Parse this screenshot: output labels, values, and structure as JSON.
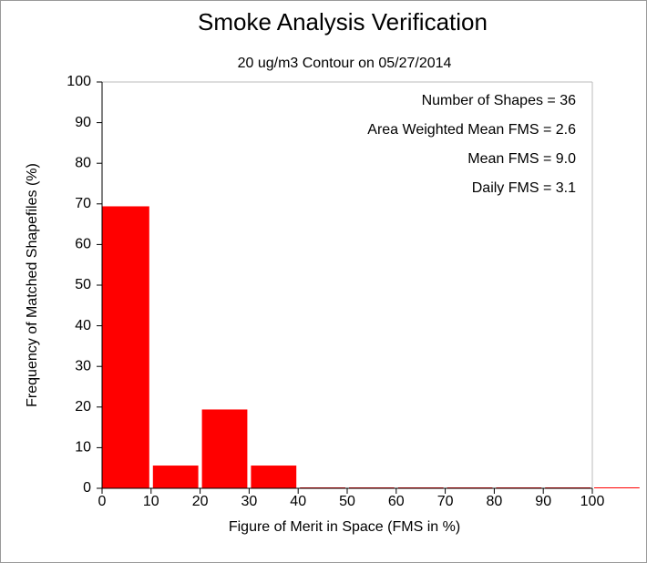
{
  "chart_data": {
    "type": "histogram",
    "title": "Smoke Analysis Verification",
    "subtitle": "20 ug/m3 Contour on 05/27/2014",
    "x_label": "Figure of Merit in Space (FMS in %)",
    "y_label": "Frequency of Matched Shapefiles (%)",
    "annotations": [
      "Number of Shapes = 36",
      "Area Weighted Mean FMS = 2.6",
      "Mean FMS = 9.0",
      "Daily FMS = 3.1"
    ],
    "bins": [
      0,
      10,
      20,
      30,
      40,
      50,
      60,
      70,
      80,
      90,
      100,
      110
    ],
    "values": [
      69.4,
      5.6,
      19.4,
      5.6,
      0,
      0,
      0,
      0,
      0,
      0,
      0
    ],
    "color": "#ff0000",
    "xlim": [
      0,
      100
    ],
    "xticks": [
      0,
      10,
      20,
      30,
      40,
      50,
      60,
      70,
      80,
      90,
      100
    ],
    "ylim": [
      0,
      100
    ],
    "yticks": [
      0,
      10,
      20,
      30,
      40,
      50,
      60,
      70,
      80,
      90,
      100
    ]
  }
}
